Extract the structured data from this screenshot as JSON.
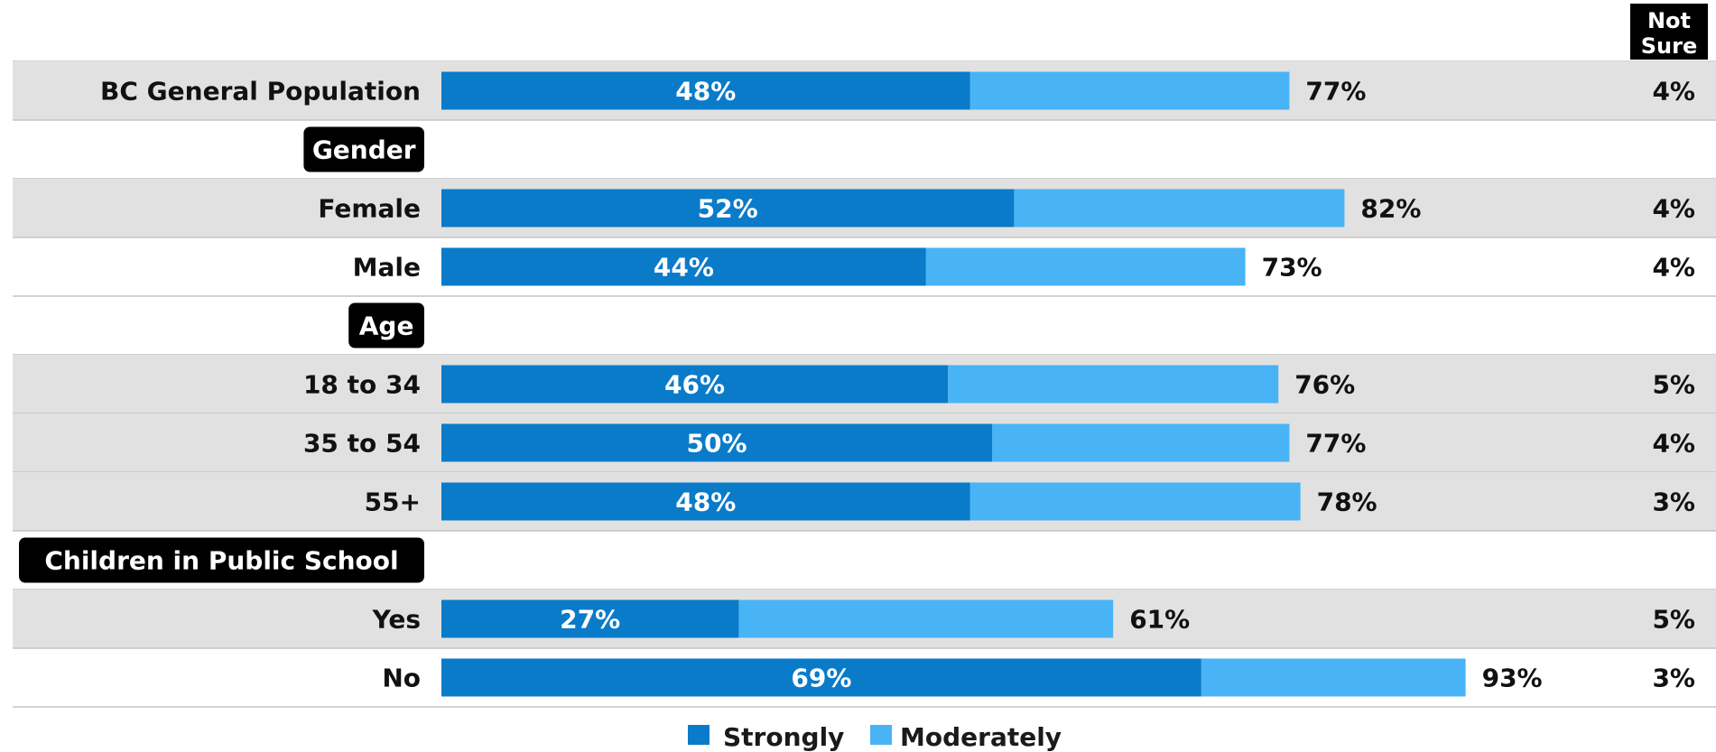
{
  "not_sure_header": [
    "Not",
    "Sure"
  ],
  "colors": {
    "strongly": "#0A7BC9",
    "moderately": "#48B4F5",
    "row_shade": "#E1E1E1",
    "separator": "#C4C4C4",
    "section_bg": "#000000"
  },
  "chart_data": {
    "type": "bar",
    "orientation": "horizontal",
    "stacked": true,
    "xlim": [
      0,
      100
    ],
    "series": [
      {
        "name": "Strongly"
      },
      {
        "name": "Moderately"
      }
    ],
    "rows": [
      {
        "kind": "data",
        "label": "BC General Population",
        "strongly": 48,
        "total": 77,
        "not_sure": 4,
        "shaded": true
      },
      {
        "kind": "section",
        "label": "Gender"
      },
      {
        "kind": "data",
        "label": "Female",
        "strongly": 52,
        "total": 82,
        "not_sure": 4,
        "shaded": true
      },
      {
        "kind": "data",
        "label": "Male",
        "strongly": 44,
        "total": 73,
        "not_sure": 4,
        "shaded": false
      },
      {
        "kind": "section",
        "label": "Age"
      },
      {
        "kind": "data",
        "label": "18 to 34",
        "strongly": 46,
        "total": 76,
        "not_sure": 5,
        "shaded": true
      },
      {
        "kind": "data",
        "label": "35 to 54",
        "strongly": 50,
        "total": 77,
        "not_sure": 4,
        "shaded": true
      },
      {
        "kind": "data",
        "label": "55+",
        "strongly": 48,
        "total": 78,
        "not_sure": 3,
        "shaded": true
      },
      {
        "kind": "section",
        "label": "Children in Public School"
      },
      {
        "kind": "data",
        "label": "Yes",
        "strongly": 27,
        "total": 61,
        "not_sure": 5,
        "shaded": true
      },
      {
        "kind": "data",
        "label": "No",
        "strongly": 69,
        "total": 93,
        "not_sure": 3,
        "shaded": false
      }
    ],
    "legend": {
      "placement": "bottom-center",
      "entries": [
        "Strongly",
        "Moderately"
      ]
    }
  }
}
